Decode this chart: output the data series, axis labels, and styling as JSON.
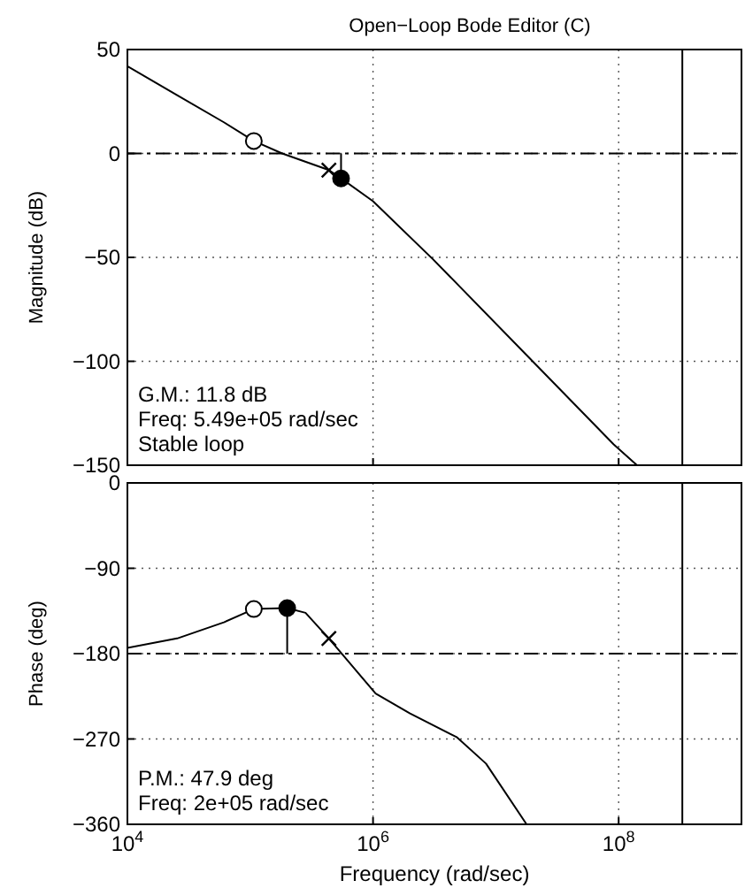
{
  "chart_data": [
    {
      "type": "line",
      "title": "Open−Loop Bode Editor (C)",
      "ylabel": "Magnitude (dB)",
      "xlim": [
        10000,
        1000000000
      ],
      "ylim": [
        -150,
        50
      ],
      "log": "x",
      "xticks": [
        {
          "value": 10000,
          "label": null
        },
        {
          "value": 1000000,
          "label": null
        },
        {
          "value": 100000000,
          "label": null
        }
      ],
      "yticks": [
        {
          "value": -150,
          "label": "−150"
        },
        {
          "value": -100,
          "label": "−100"
        },
        {
          "value": -50,
          "label": "−50"
        },
        {
          "value": 0,
          "label": "0"
        },
        {
          "value": 50,
          "label": "50"
        }
      ],
      "tick_labels": "y",
      "grid": true,
      "ref_lines": [
        {
          "axis": "y",
          "value": 0,
          "label": null,
          "line_style": "dashed",
          "color": "#000000"
        },
        {
          "axis": "x",
          "value": 330000000,
          "label": null,
          "line_style": "solid",
          "color": "#000000"
        }
      ],
      "annotations": [
        "G.M.: 11.8 dB",
        "Freq: 5.49e+05 rad/sec",
        "Stable loop"
      ],
      "series": [
        {
          "type": "line",
          "color": "#000000",
          "x": [
            10000,
            25400,
            61000,
            107000,
            182000,
            437000,
            549000,
            1000000,
            3090000,
            17800000,
            91200000,
            141000000
          ],
          "values": [
            42,
            28,
            15,
            6,
            0,
            -8,
            -12,
            -23,
            -51,
            -97,
            -140,
            -150
          ]
        },
        {
          "type": "line",
          "color": "#000000",
          "x": [
            549000,
            549000
          ],
          "values": [
            -12,
            0
          ]
        },
        {
          "type": "scatter",
          "marker": "circle",
          "color": "#ffffff",
          "x": [
            107000
          ],
          "values": [
            6
          ]
        },
        {
          "type": "scatter",
          "marker": "cross",
          "color": "#000000",
          "x": [
            437000
          ],
          "values": [
            -8
          ]
        },
        {
          "type": "scatter",
          "marker": "circle",
          "color": "#000000",
          "x": [
            549000
          ],
          "values": [
            -12
          ]
        }
      ]
    },
    {
      "type": "line",
      "xlabel": "Frequency (rad/sec)",
      "ylabel": "Phase (deg)",
      "xlim": [
        10000,
        1000000000
      ],
      "ylim": [
        -360,
        0
      ],
      "log": "x",
      "xticks": [
        {
          "value": 10000,
          "label": "10$^{4}$"
        },
        {
          "value": 1000000,
          "label": "10$^{6}$"
        },
        {
          "value": 100000000,
          "label": "10$^{8}$"
        }
      ],
      "yticks": [
        {
          "value": -360,
          "label": "−360"
        },
        {
          "value": -270,
          "label": "−270"
        },
        {
          "value": -180,
          "label": "−180"
        },
        {
          "value": -90,
          "label": "−90"
        },
        {
          "value": 0,
          "label": "0"
        }
      ],
      "grid": true,
      "ref_lines": [
        {
          "axis": "y",
          "value": -180,
          "label": null,
          "line_style": "dashed",
          "color": "#000000"
        },
        {
          "axis": "x",
          "value": 330000000,
          "label": null,
          "line_style": "solid",
          "color": "#000000"
        }
      ],
      "annotations": [
        "P.M.: 47.9 deg",
        "Freq: 2e+05 rad/sec"
      ],
      "series": [
        {
          "type": "line",
          "color": "#000000",
          "x": [
            10000,
            25400,
            61000,
            107000,
            200000,
            282000,
            437000,
            676000,
            1050000,
            2000000,
            4790000,
            8320000,
            17800000
          ],
          "values": [
            -174,
            -164,
            -147,
            -133,
            -132,
            -137,
            -164,
            -193,
            -222,
            -243,
            -268,
            -296,
            -360
          ]
        },
        {
          "type": "line",
          "color": "#000000",
          "x": [
            200000,
            200000
          ],
          "values": [
            -132,
            -180
          ]
        },
        {
          "type": "scatter",
          "marker": "circle",
          "color": "#ffffff",
          "x": [
            107000
          ],
          "values": [
            -133
          ]
        },
        {
          "type": "scatter",
          "marker": "cross",
          "color": "#000000",
          "x": [
            437000
          ],
          "values": [
            -164
          ]
        },
        {
          "type": "scatter",
          "marker": "circle",
          "color": "#000000",
          "x": [
            200000
          ],
          "values": [
            -132
          ]
        }
      ]
    }
  ]
}
